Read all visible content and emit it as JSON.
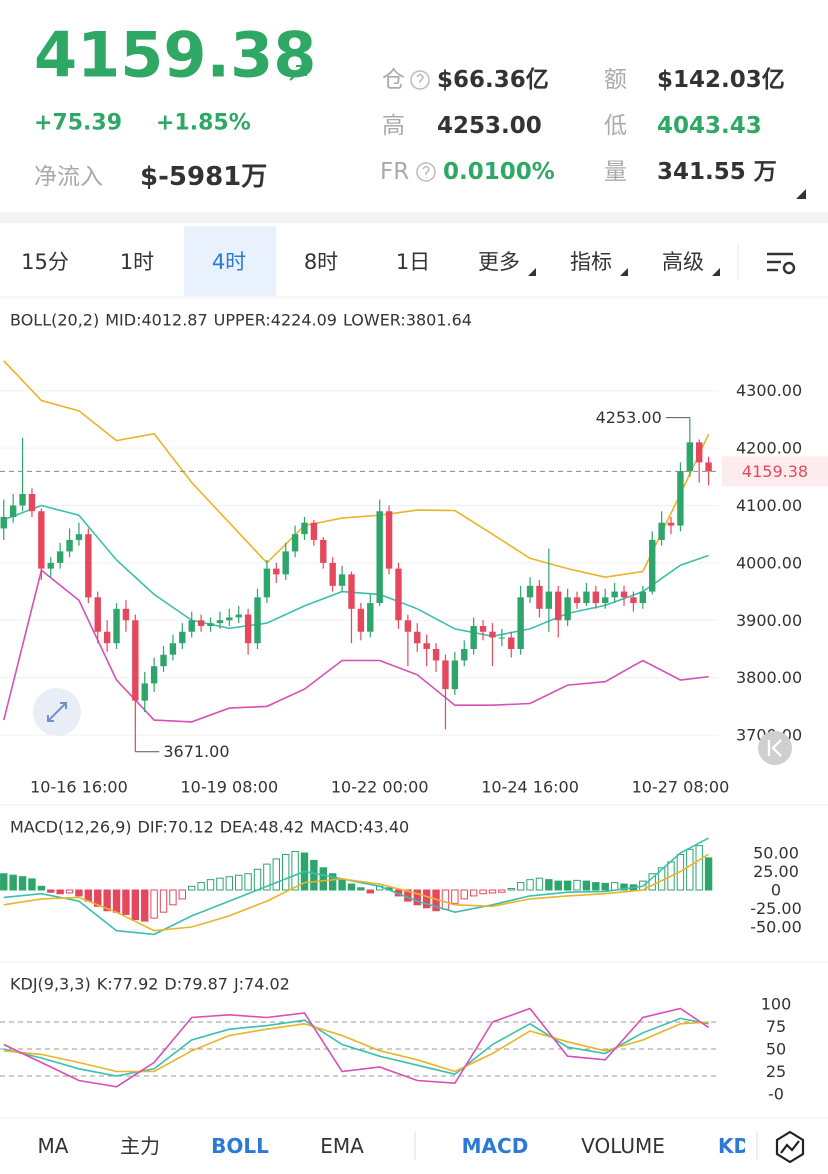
{
  "header": {
    "price": "4159.38",
    "change": "+75.39",
    "change_pct": "+1.85%",
    "net_inflow_label": "净流入",
    "net_inflow": "$-5981万",
    "stats": [
      {
        "label": "仓",
        "value": "$66.36亿"
      },
      {
        "label": "额",
        "value": "$142.03亿"
      },
      {
        "label": "高",
        "value": "4253.00"
      },
      {
        "label": "低",
        "value": "4043.43"
      },
      {
        "label": "FR",
        "value": "0.0100%"
      },
      {
        "label": "量",
        "value": "341.55 万"
      }
    ]
  },
  "tabs": {
    "items": [
      "15分",
      "1时",
      "4时",
      "8时",
      "1日",
      "更多",
      "指标",
      "高级"
    ]
  },
  "chart_data": [
    {
      "type": "candlestick",
      "title": "BOLL(20,2)",
      "xlim": [
        -0.4,
        76
      ],
      "xticks": [
        {
          "value": 8,
          "label": "10-16 16:00"
        },
        {
          "value": 24,
          "label": "10-19 08:00"
        },
        {
          "value": 40,
          "label": "10-22 00:00"
        },
        {
          "value": 56,
          "label": "10-24 16:00"
        },
        {
          "value": 72,
          "label": "10-27 08:00"
        }
      ],
      "ylim": [
        3640,
        4400
      ],
      "yticks": [
        {
          "value": 4300,
          "label": "4300.00"
        },
        {
          "value": 4200,
          "label": "4200.00"
        },
        {
          "value": 4100,
          "label": "4100.00"
        },
        {
          "value": 4000,
          "label": "4000.00"
        },
        {
          "value": 3900,
          "label": "3900.00"
        },
        {
          "value": 3800,
          "label": "3800.00"
        },
        {
          "value": 3700,
          "label": "3700.00"
        }
      ],
      "grid": true,
      "up_color": "#2ea56b",
      "down_color": "#e5485d",
      "ohlc": [
        [
          4060,
          4110,
          4040,
          4080
        ],
        [
          4080,
          4120,
          4070,
          4100
        ],
        [
          4100,
          4218,
          4090,
          4120
        ],
        [
          4120,
          4130,
          4080,
          4090
        ],
        [
          4090,
          4095,
          3970,
          3990
        ],
        [
          3990,
          4010,
          3975,
          4000
        ],
        [
          4000,
          4035,
          3990,
          4020
        ],
        [
          4020,
          4060,
          4010,
          4040
        ],
        [
          4040,
          4070,
          4030,
          4050
        ],
        [
          4050,
          4060,
          3930,
          3940
        ],
        [
          3940,
          3950,
          3860,
          3880
        ],
        [
          3880,
          3900,
          3845,
          3860
        ],
        [
          3860,
          3930,
          3850,
          3920
        ],
        [
          3920,
          3935,
          3880,
          3900
        ],
        [
          3900,
          3910,
          3671,
          3760
        ],
        [
          3760,
          3810,
          3740,
          3790
        ],
        [
          3790,
          3835,
          3775,
          3820
        ],
        [
          3820,
          3855,
          3810,
          3840
        ],
        [
          3840,
          3875,
          3830,
          3860
        ],
        [
          3860,
          3895,
          3850,
          3880
        ],
        [
          3880,
          3915,
          3870,
          3900
        ],
        [
          3900,
          3910,
          3880,
          3890
        ],
        [
          3890,
          3905,
          3880,
          3895
        ],
        [
          3895,
          3915,
          3885,
          3900
        ],
        [
          3900,
          3920,
          3890,
          3905
        ],
        [
          3905,
          3925,
          3895,
          3910
        ],
        [
          3910,
          3920,
          3840,
          3860
        ],
        [
          3860,
          3955,
          3850,
          3940
        ],
        [
          3940,
          4005,
          3930,
          3990
        ],
        [
          3990,
          4000,
          3965,
          3980
        ],
        [
          3980,
          4035,
          3970,
          4020
        ],
        [
          4020,
          4065,
          4010,
          4050
        ],
        [
          4050,
          4080,
          4040,
          4070
        ],
        [
          4070,
          4075,
          4030,
          4040
        ],
        [
          4040,
          4045,
          3990,
          4000
        ],
        [
          4000,
          4010,
          3950,
          3960
        ],
        [
          3960,
          3995,
          3950,
          3980
        ],
        [
          3980,
          3985,
          3860,
          3920
        ],
        [
          3920,
          3930,
          3865,
          3880
        ],
        [
          3880,
          3945,
          3870,
          3930
        ],
        [
          3930,
          4110,
          3925,
          4090
        ],
        [
          4090,
          4100,
          3980,
          3990
        ],
        [
          3990,
          4000,
          3885,
          3900
        ],
        [
          3900,
          3910,
          3820,
          3880
        ],
        [
          3880,
          3895,
          3845,
          3860
        ],
        [
          3860,
          3875,
          3820,
          3850
        ],
        [
          3850,
          3860,
          3810,
          3830
        ],
        [
          3830,
          3840,
          3710,
          3780
        ],
        [
          3780,
          3845,
          3770,
          3830
        ],
        [
          3830,
          3865,
          3820,
          3850
        ],
        [
          3850,
          3905,
          3840,
          3890
        ],
        [
          3890,
          3900,
          3865,
          3880
        ],
        [
          3880,
          3895,
          3820,
          3870
        ],
        [
          3870,
          3885,
          3855,
          3870
        ],
        [
          3870,
          3880,
          3835,
          3850
        ],
        [
          3850,
          3960,
          3840,
          3940
        ],
        [
          3940,
          3975,
          3930,
          3960
        ],
        [
          3960,
          3970,
          3905,
          3920
        ],
        [
          3920,
          4025,
          3880,
          3950
        ],
        [
          3950,
          3960,
          3870,
          3900
        ],
        [
          3900,
          3955,
          3890,
          3940
        ],
        [
          3940,
          3950,
          3920,
          3930
        ],
        [
          3930,
          3965,
          3925,
          3950
        ],
        [
          3950,
          3960,
          3920,
          3930
        ],
        [
          3930,
          3955,
          3920,
          3940
        ],
        [
          3940,
          3965,
          3930,
          3950
        ],
        [
          3950,
          3960,
          3925,
          3940
        ],
        [
          3940,
          3950,
          3915,
          3930
        ],
        [
          3930,
          3960,
          3920,
          3950
        ],
        [
          3950,
          4055,
          3945,
          4040
        ],
        [
          4040,
          4090,
          4030,
          4070
        ],
        [
          4070,
          4080,
          4050,
          4065
        ],
        [
          4065,
          4175,
          4055,
          4160
        ],
        [
          4160,
          4253,
          4150,
          4210
        ],
        [
          4210,
          4215,
          4140,
          4175
        ],
        [
          4175,
          4185,
          4135,
          4159.38
        ]
      ],
      "series": [
        {
          "name": "MID:4012.87",
          "color": "#3bbfae",
          "x": [
            0,
            4,
            8,
            12,
            16,
            20,
            24,
            28,
            32,
            36,
            40,
            44,
            48,
            52,
            56,
            60,
            64,
            68,
            72,
            75
          ],
          "values": [
            4075,
            4100,
            4083,
            4005,
            3945,
            3900,
            3886,
            3895,
            3925,
            3950,
            3945,
            3920,
            3885,
            3872,
            3885,
            3912,
            3926,
            3950,
            3996,
            4012.87
          ]
        },
        {
          "name": "UPPER:4224.09",
          "color": "#e9b42a",
          "x": [
            0,
            4,
            8,
            12,
            16,
            20,
            24,
            28,
            32,
            36,
            40,
            44,
            48,
            52,
            56,
            60,
            64,
            68,
            72,
            75
          ],
          "values": [
            4352,
            4283,
            4265,
            4213,
            4225,
            4140,
            4070,
            4000,
            4065,
            4078,
            4083,
            4092,
            4091,
            4050,
            4008,
            3990,
            3975,
            3985,
            4120,
            4224.09
          ]
        },
        {
          "name": "LOWER:3801.64",
          "color": "#d84fb6",
          "x": [
            0,
            4,
            8,
            12,
            16,
            20,
            24,
            28,
            32,
            36,
            40,
            44,
            48,
            52,
            56,
            60,
            64,
            68,
            72,
            75
          ],
          "values": [
            3726,
            3987,
            3935,
            3796,
            3726,
            3723,
            3747,
            3750,
            3780,
            3830,
            3830,
            3805,
            3752,
            3752,
            3755,
            3787,
            3793,
            3830,
            3796,
            3801.64
          ]
        }
      ],
      "annotations": [
        {
          "x": 73,
          "value": 4253,
          "label": "4253.00"
        },
        {
          "x": 14,
          "value": 3671,
          "label": "3671.00"
        }
      ],
      "last_price": {
        "value": 4159.38,
        "label": "4159.38"
      }
    },
    {
      "type": "macd",
      "title": "MACD(12,26,9)",
      "xlim": [
        -0.4,
        76
      ],
      "ylim": [
        -95,
        95
      ],
      "yticks": [
        {
          "value": 50,
          "label": "50.00"
        },
        {
          "value": 25,
          "label": "25.00"
        },
        0,
        {
          "value": -25,
          "label": "-25.00"
        },
        {
          "value": -50,
          "label": "-50.00"
        }
      ],
      "up_color": "#2ea56b",
      "down_color": "#e5485d",
      "series": [
        {
          "name": "DIF:70.12",
          "color": "#3bbfae",
          "x": [
            0,
            4,
            8,
            12,
            16,
            20,
            24,
            28,
            32,
            36,
            40,
            44,
            48,
            52,
            56,
            60,
            64,
            68,
            72,
            75
          ],
          "values": [
            -10,
            -5,
            -15,
            -55,
            -60,
            -35,
            -15,
            5,
            25,
            15,
            5,
            -15,
            -30,
            -20,
            -8,
            -3,
            -2,
            5,
            50,
            70.12
          ]
        },
        {
          "name": "DEA:48.42",
          "color": "#e9b42a",
          "x": [
            0,
            4,
            8,
            12,
            16,
            20,
            24,
            28,
            32,
            36,
            40,
            44,
            48,
            52,
            56,
            60,
            64,
            68,
            72,
            75
          ],
          "values": [
            -20,
            -12,
            -10,
            -30,
            -55,
            -50,
            -35,
            -15,
            10,
            15,
            8,
            -5,
            -20,
            -22,
            -12,
            -8,
            -5,
            0,
            25,
            48.42
          ]
        }
      ],
      "histogram": {
        "name": "MACD:43.40",
        "color": "#d84fb6",
        "values": [
          22,
          20,
          18,
          15,
          5,
          -3,
          -5,
          -4,
          -8,
          -15,
          -22,
          -28,
          -30,
          -33,
          -40,
          -42,
          -38,
          -30,
          -20,
          -12,
          5,
          10,
          14,
          16,
          18,
          20,
          22,
          28,
          35,
          42,
          48,
          52,
          50,
          40,
          30,
          22,
          15,
          8,
          3,
          -4,
          5,
          3,
          -8,
          -15,
          -20,
          -24,
          -28,
          -26,
          -18,
          -12,
          -8,
          -5,
          -4,
          -3,
          2,
          10,
          14,
          16,
          14,
          12,
          12,
          13,
          12,
          10,
          9,
          10,
          8,
          7,
          12,
          22,
          30,
          38,
          48,
          55,
          60,
          43.4
        ]
      }
    },
    {
      "type": "kdj",
      "title": "KDJ(9,3,3)",
      "xlim": [
        -0.4,
        76
      ],
      "ylim": [
        -20,
        120
      ],
      "yticks": [
        100,
        75,
        50,
        25,
        {
          "value": 0,
          "label": "-0"
        }
      ],
      "ref_lines": [
        80,
        50,
        20
      ],
      "series": [
        {
          "name": "K:77.92",
          "color": "#3bbfae",
          "x": [
            0,
            4,
            8,
            12,
            16,
            20,
            24,
            28,
            32,
            36,
            40,
            44,
            48,
            52,
            56,
            60,
            64,
            68,
            72,
            75
          ],
          "values": [
            50,
            40,
            28,
            20,
            28,
            60,
            72,
            76,
            82,
            55,
            42,
            32,
            22,
            55,
            78,
            52,
            45,
            68,
            84,
            77.92
          ]
        },
        {
          "name": "D:79.87",
          "color": "#e9b42a",
          "x": [
            0,
            4,
            8,
            12,
            16,
            20,
            24,
            28,
            32,
            36,
            40,
            44,
            48,
            52,
            56,
            60,
            64,
            68,
            72,
            75
          ],
          "values": [
            48,
            44,
            35,
            25,
            25,
            48,
            65,
            72,
            78,
            65,
            48,
            38,
            25,
            45,
            70,
            58,
            48,
            60,
            78,
            79.87
          ]
        },
        {
          "name": "J:74.02",
          "color": "#d84fb6",
          "x": [
            0,
            4,
            8,
            12,
            16,
            20,
            24,
            28,
            32,
            36,
            40,
            44,
            48,
            52,
            56,
            60,
            64,
            68,
            72,
            75
          ],
          "values": [
            55,
            35,
            15,
            8,
            35,
            85,
            88,
            85,
            90,
            25,
            30,
            15,
            12,
            80,
            95,
            42,
            38,
            85,
            95,
            74.02
          ]
        }
      ]
    }
  ],
  "bottom_tabs": {
    "items": [
      "MA",
      "主力",
      "BOLL",
      "EMA",
      "MACD",
      "VOLUME",
      "KD"
    ]
  }
}
